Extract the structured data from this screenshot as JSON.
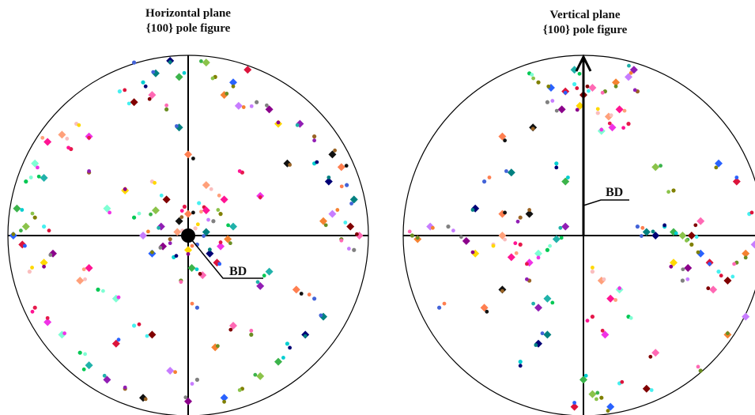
{
  "chart_data": [
    {
      "type": "scatter",
      "title": "Horizontal plane",
      "subtitle": "{100} pole figure",
      "annotation": "BD",
      "annotation_marker": "filled-black-circle-at-center",
      "axes": "crosshair",
      "xlim": [
        -1,
        1
      ],
      "ylim": [
        -1,
        1
      ],
      "legend": "none",
      "marker_shapes": [
        "diamond",
        "circle"
      ],
      "point_count_approx": 600,
      "points": [
        [
          -0.3,
          0.96
        ],
        [
          -0.18,
          0.9
        ],
        [
          -0.1,
          0.97
        ],
        [
          -0.25,
          0.85
        ],
        [
          -0.05,
          0.88
        ],
        [
          0.1,
          0.96
        ],
        [
          0.15,
          0.88
        ],
        [
          0.25,
          0.85
        ],
        [
          0.33,
          0.92
        ],
        [
          -0.38,
          0.8
        ],
        [
          -0.3,
          0.74
        ],
        [
          -0.2,
          0.78
        ],
        [
          -0.12,
          0.7
        ],
        [
          0.2,
          0.78
        ],
        [
          0.28,
          0.72
        ],
        [
          0.38,
          0.74
        ],
        [
          0.45,
          0.7
        ],
        [
          0.5,
          0.62
        ],
        [
          -0.62,
          0.62
        ],
        [
          -0.7,
          0.56
        ],
        [
          -0.78,
          0.52
        ],
        [
          -0.65,
          0.48
        ],
        [
          -0.55,
          0.55
        ],
        [
          -0.85,
          0.4
        ],
        [
          -0.9,
          0.3
        ],
        [
          -0.8,
          0.32
        ],
        [
          0.62,
          0.62
        ],
        [
          0.7,
          0.55
        ],
        [
          0.8,
          0.45
        ],
        [
          0.85,
          0.38
        ],
        [
          0.88,
          0.28
        ],
        [
          0.92,
          0.2
        ],
        [
          0.78,
          0.3
        ],
        [
          0.7,
          0.4
        ],
        [
          -0.95,
          0.15
        ],
        [
          -0.9,
          0.05
        ],
        [
          -0.85,
          0.1
        ],
        [
          -0.97,
          0.0
        ],
        [
          -0.92,
          -0.05
        ],
        [
          -0.8,
          0.05
        ],
        [
          0.9,
          0.05
        ],
        [
          0.95,
          0.0
        ],
        [
          0.85,
          -0.02
        ],
        [
          0.75,
          0.08
        ],
        [
          0.8,
          0.12
        ],
        [
          0.92,
          -0.08
        ],
        [
          -0.75,
          -0.1
        ],
        [
          -0.8,
          -0.15
        ],
        [
          -0.88,
          -0.2
        ],
        [
          -0.6,
          -0.25
        ],
        [
          -0.55,
          -0.18
        ],
        [
          -0.85,
          -0.4
        ],
        [
          -0.78,
          -0.48
        ],
        [
          -0.7,
          -0.55
        ],
        [
          -0.6,
          -0.65
        ],
        [
          -0.55,
          -0.72
        ],
        [
          -0.45,
          -0.8
        ],
        [
          -0.35,
          -0.85
        ],
        [
          -0.25,
          -0.9
        ],
        [
          0.6,
          -0.3
        ],
        [
          0.7,
          -0.35
        ],
        [
          0.75,
          -0.45
        ],
        [
          0.65,
          -0.55
        ],
        [
          0.55,
          -0.6
        ],
        [
          0.5,
          -0.7
        ],
        [
          0.4,
          -0.78
        ],
        [
          0.3,
          -0.85
        ],
        [
          0.2,
          -0.9
        ],
        [
          -0.4,
          -0.6
        ],
        [
          -0.3,
          -0.5
        ],
        [
          -0.2,
          -0.55
        ],
        [
          0.25,
          -0.5
        ],
        [
          0.35,
          -0.55
        ],
        [
          0.15,
          -0.62
        ],
        [
          -0.1,
          -0.75
        ],
        [
          0.05,
          -0.8
        ],
        [
          0.0,
          -0.92
        ],
        [
          -0.35,
          0.25
        ],
        [
          -0.2,
          0.3
        ],
        [
          0.1,
          0.28
        ],
        [
          0.2,
          0.2
        ],
        [
          0.3,
          0.35
        ],
        [
          0.4,
          0.22
        ],
        [
          -0.45,
          0.15
        ],
        [
          -0.3,
          0.1
        ],
        [
          0.25,
          0.05
        ],
        [
          -0.15,
          0.05
        ],
        [
          -0.1,
          -0.02
        ],
        [
          -0.05,
          0.08
        ],
        [
          0.0,
          0.12
        ],
        [
          0.05,
          -0.05
        ],
        [
          0.1,
          0.02
        ],
        [
          0.12,
          -0.1
        ],
        [
          -0.08,
          -0.12
        ],
        [
          0.02,
          -0.18
        ],
        [
          -0.18,
          0.14
        ],
        [
          0.18,
          0.12
        ],
        [
          -0.2,
          -0.1
        ],
        [
          0.16,
          -0.15
        ],
        [
          0.06,
          0.18
        ],
        [
          -0.12,
          0.2
        ],
        [
          0.08,
          -0.22
        ],
        [
          -0.04,
          -0.25
        ],
        [
          0.22,
          -0.02
        ],
        [
          -0.25,
          0.0
        ],
        [
          0.14,
          0.08
        ],
        [
          -0.14,
          -0.06
        ],
        [
          0.0,
          -0.08
        ],
        [
          0.04,
          0.04
        ],
        [
          -0.06,
          0.02
        ],
        [
          0.1,
          0.14
        ],
        [
          -0.02,
          0.16
        ],
        [
          0.18,
          -0.06
        ],
        [
          -0.4,
          -0.35
        ],
        [
          -0.5,
          -0.3
        ],
        [
          0.45,
          -0.2
        ],
        [
          0.4,
          -0.28
        ],
        [
          -0.55,
          0.35
        ],
        [
          0.55,
          0.4
        ],
        [
          0.0,
          0.45
        ],
        [
          0.05,
          -0.4
        ],
        [
          -0.05,
          0.6
        ]
      ]
    },
    {
      "type": "scatter",
      "title": "Vertical plane",
      "subtitle": "{100} pole figure",
      "annotation": "BD",
      "annotation_marker": "upward-arrow-on-vertical-axis",
      "axes": "crosshair",
      "xlim": [
        -1,
        1
      ],
      "ylim": [
        -1,
        1
      ],
      "legend": "none",
      "marker_shapes": [
        "diamond",
        "circle"
      ],
      "point_count_approx": 300,
      "points": [
        [
          -0.25,
          0.85
        ],
        [
          -0.18,
          0.82
        ],
        [
          -0.1,
          0.8
        ],
        [
          -0.05,
          0.84
        ],
        [
          0.0,
          0.78
        ],
        [
          0.05,
          0.82
        ],
        [
          0.12,
          0.8
        ],
        [
          0.18,
          0.85
        ],
        [
          0.25,
          0.88
        ],
        [
          -0.2,
          0.74
        ],
        [
          -0.12,
          0.7
        ],
        [
          -0.02,
          0.72
        ],
        [
          0.08,
          0.68
        ],
        [
          0.14,
          0.66
        ],
        [
          0.2,
          0.7
        ],
        [
          0.25,
          0.62
        ],
        [
          0.16,
          0.6
        ],
        [
          0.1,
          0.58
        ],
        [
          -0.3,
          0.9
        ],
        [
          -0.05,
          0.92
        ],
        [
          0.28,
          0.92
        ],
        [
          0.3,
          0.8
        ],
        [
          -0.28,
          0.6
        ],
        [
          -0.45,
          0.55
        ],
        [
          -0.55,
          0.3
        ],
        [
          -0.4,
          0.35
        ],
        [
          -0.6,
          0.15
        ],
        [
          -0.15,
          0.4
        ],
        [
          -0.1,
          0.3
        ],
        [
          0.4,
          0.38
        ],
        [
          0.5,
          0.25
        ],
        [
          0.75,
          0.4
        ],
        [
          0.85,
          0.3
        ],
        [
          0.92,
          0.12
        ],
        [
          0.6,
          0.0
        ],
        [
          0.65,
          0.08
        ],
        [
          -0.95,
          0.0
        ],
        [
          -0.92,
          -0.02
        ],
        [
          -0.85,
          0.05
        ],
        [
          -0.75,
          0.05
        ],
        [
          -0.65,
          -0.03
        ],
        [
          -0.6,
          -0.1
        ],
        [
          -0.5,
          -0.05
        ],
        [
          -0.45,
          0.0
        ],
        [
          -0.4,
          -0.12
        ],
        [
          -0.35,
          -0.05
        ],
        [
          -0.3,
          -0.15
        ],
        [
          -0.25,
          -0.1
        ],
        [
          -0.2,
          -0.08
        ],
        [
          -0.15,
          -0.02
        ],
        [
          -0.1,
          0.05
        ],
        [
          -0.35,
          0.1
        ],
        [
          -0.3,
          0.12
        ],
        [
          -0.45,
          0.12
        ],
        [
          0.3,
          0.05
        ],
        [
          0.35,
          0.02
        ],
        [
          0.4,
          0.0
        ],
        [
          0.45,
          0.05
        ],
        [
          0.5,
          0.02
        ],
        [
          0.55,
          0.0
        ],
        [
          0.6,
          -0.05
        ],
        [
          0.65,
          -0.1
        ],
        [
          0.7,
          -0.15
        ],
        [
          0.75,
          -0.2
        ],
        [
          0.8,
          -0.25
        ],
        [
          0.72,
          -0.3
        ],
        [
          0.85,
          -0.15
        ],
        [
          0.9,
          -0.1
        ],
        [
          0.95,
          -0.05
        ],
        [
          0.55,
          -0.25
        ],
        [
          0.58,
          -0.18
        ],
        [
          0.5,
          -0.15
        ],
        [
          0.05,
          -0.2
        ],
        [
          0.1,
          -0.25
        ],
        [
          0.15,
          -0.35
        ],
        [
          0.05,
          -0.45
        ],
        [
          0.12,
          -0.55
        ],
        [
          0.2,
          -0.3
        ],
        [
          0.25,
          -0.45
        ],
        [
          -0.2,
          -0.35
        ],
        [
          -0.25,
          -0.4
        ],
        [
          -0.3,
          -0.25
        ],
        [
          -0.45,
          -0.3
        ],
        [
          -0.55,
          -0.4
        ],
        [
          -0.8,
          -0.4
        ],
        [
          -0.2,
          -0.55
        ],
        [
          -0.25,
          -0.6
        ],
        [
          -0.35,
          -0.7
        ],
        [
          0.0,
          -0.8
        ],
        [
          0.05,
          -0.88
        ],
        [
          0.1,
          -0.9
        ],
        [
          0.15,
          -0.95
        ],
        [
          -0.05,
          -0.95
        ],
        [
          0.2,
          -0.82
        ],
        [
          0.35,
          -0.85
        ],
        [
          0.4,
          -0.65
        ],
        [
          0.65,
          -0.75
        ],
        [
          0.8,
          -0.55
        ],
        [
          0.9,
          -0.45
        ]
      ]
    }
  ],
  "colors": {
    "palette": [
      "#e6194b",
      "#3cb44b",
      "#ffd800",
      "#4363d8",
      "#f58231",
      "#911eb4",
      "#46f0f0",
      "#f032e6",
      "#8bc34a",
      "#fabebe",
      "#008080",
      "#c77dff",
      "#9a6324",
      "#800000",
      "#7fffd4",
      "#808000",
      "#ffa07a",
      "#000075",
      "#808080",
      "#111111",
      "#ff69b4",
      "#00c853",
      "#2962ff",
      "#ff1493",
      "#00ced1",
      "#8b008b",
      "#ff7f50",
      "#6b8e23",
      "#20b2aa",
      "#dc143c"
    ],
    "axis": "#000000"
  }
}
